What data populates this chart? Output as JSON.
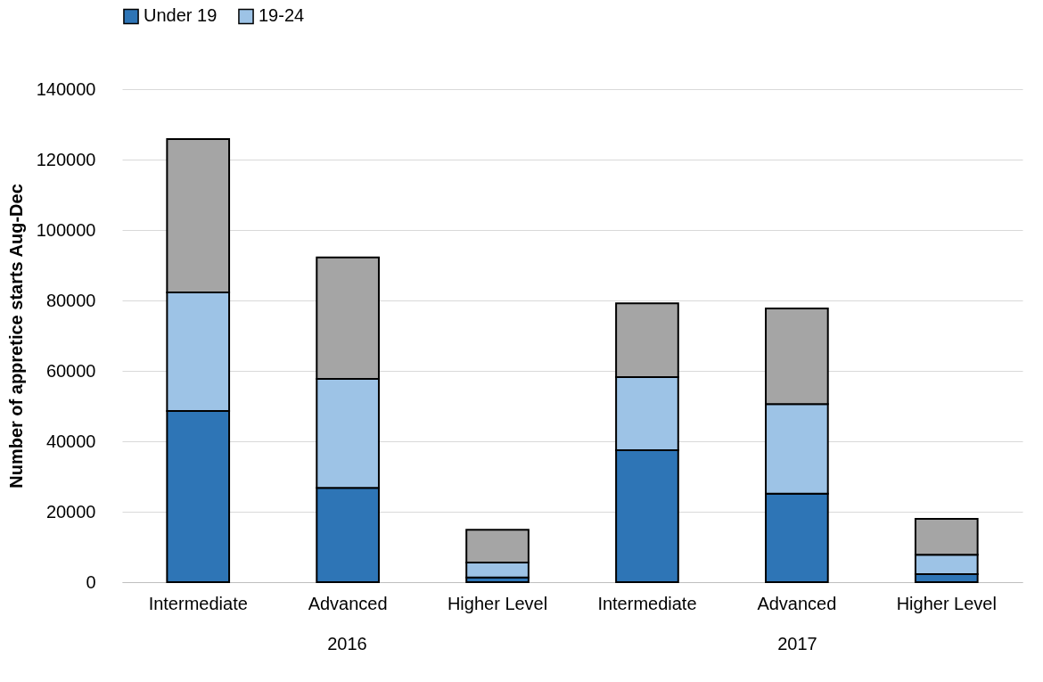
{
  "chart_data": {
    "type": "bar",
    "stacked": true,
    "ylabel": "Number of appretice starts Aug-Dec",
    "categories": [
      "Intermediate",
      "Advanced",
      "Higher Level",
      "Intermediate",
      "Advanced",
      "Higher Level"
    ],
    "series": [
      {
        "name": "Under 19",
        "color": "#2e75b6",
        "values": [
          48600,
          26800,
          1300,
          37500,
          25100,
          2300
        ]
      },
      {
        "name": "19-24",
        "color": "#9dc3e6",
        "values": [
          33700,
          30900,
          4300,
          20700,
          25500,
          5500
        ]
      },
      {
        "color": "#a5a5a5",
        "values": [
          43500,
          34500,
          9300,
          21000,
          27100,
          10200
        ]
      }
    ],
    "annotations": [
      "2016",
      "2017"
    ],
    "ylim": [
      0,
      140000
    ],
    "yticks": [
      0,
      20000,
      40000,
      60000,
      80000,
      100000,
      120000,
      140000
    ],
    "grid": "y",
    "legend": "top"
  }
}
